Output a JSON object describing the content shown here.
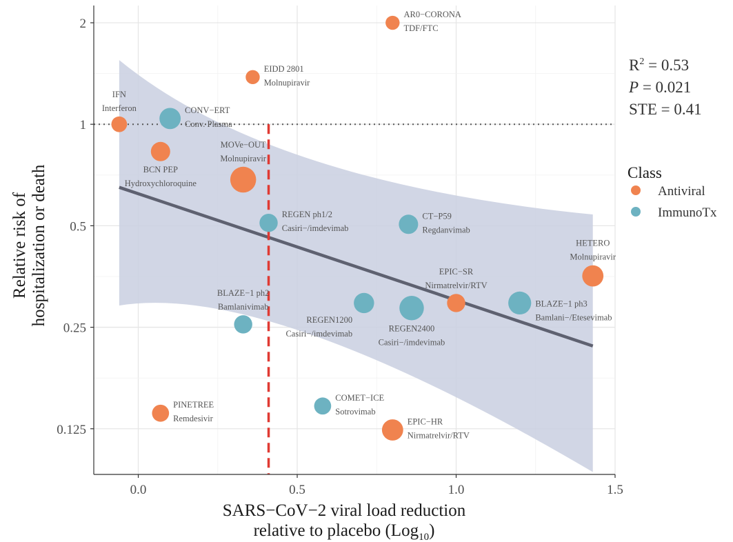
{
  "chart_data": {
    "type": "scatter",
    "xlabel_lines": [
      "SARS−CoV−2 viral load reduction",
      "relative to placebo (Log",
      "10",
      ")"
    ],
    "ylabel_lines": [
      "Relative risk of",
      "hospitalization or death"
    ],
    "x_ticks": [
      {
        "value": 0.0,
        "label": "0.0"
      },
      {
        "value": 0.5,
        "label": "0.5"
      },
      {
        "value": 1.0,
        "label": "1.0"
      },
      {
        "value": 1.5,
        "label": "1.5"
      }
    ],
    "y_ticks": [
      {
        "value": 0.125,
        "label": "0.125"
      },
      {
        "value": 0.25,
        "label": "0.25"
      },
      {
        "value": 0.5,
        "label": "0.5"
      },
      {
        "value": 1,
        "label": "1"
      },
      {
        "value": 2,
        "label": "2"
      }
    ],
    "xlim": [
      -0.14,
      1.5
    ],
    "ylim_log2": [
      -3.45,
      1.17
    ],
    "y_scale": "log2",
    "grid": true,
    "reference_line_y": 1,
    "threshold_x": 0.41,
    "regression": {
      "x_range": [
        -0.06,
        1.43
      ],
      "y_at_start": 0.65,
      "y_at_end": 0.22,
      "ci_lower": [
        [
          -0.06,
          0.29
        ],
        [
          0.41,
          0.29
        ],
        [
          1.43,
          0.093
        ]
      ],
      "ci_upper": [
        [
          -0.06,
          1.55
        ],
        [
          0.41,
          0.82
        ],
        [
          1.43,
          0.54
        ]
      ]
    },
    "stats": {
      "r2_prefix": "R",
      "r2_sup": "2",
      "r2_value": " = 0.53",
      "p_symbol": "P",
      "p_value": " = 0.021",
      "ste": "STE = 0.41"
    },
    "legend": {
      "title": "Class",
      "position": "right",
      "items": [
        {
          "label": "Antiviral",
          "color": "#f0834f"
        },
        {
          "label": "ImmunoTx",
          "color": "#6db2c1"
        }
      ]
    },
    "colors": {
      "Antiviral": "#f0834f",
      "ImmunoTx": "#6db2c1",
      "regression": "#5e6170",
      "ci_band": "#c9cfe0",
      "threshold": "#e03a33"
    },
    "points": [
      {
        "x": 0.8,
        "y": 2.0,
        "class": "Antiviral",
        "weight": 1,
        "trial": "AR0−CORONA",
        "drug": "TDF/FTC",
        "label_side": "right-up"
      },
      {
        "x": 0.36,
        "y": 1.38,
        "class": "Antiviral",
        "weight": 1,
        "trial": "EIDD 2801",
        "drug": "Molnupiravir",
        "label_side": "right-up"
      },
      {
        "x": -0.06,
        "y": 1.0,
        "class": "Antiviral",
        "weight": 1.5,
        "trial": "IFN",
        "drug": "Interferon",
        "label_side": "up"
      },
      {
        "x": 0.1,
        "y": 1.04,
        "class": "ImmunoTx",
        "weight": 4,
        "trial": "CONV−ERT",
        "drug": "Conv. Plasma",
        "label_side": "right-up"
      },
      {
        "x": 0.07,
        "y": 0.83,
        "class": "Antiviral",
        "weight": 3,
        "trial": "BCN PEP",
        "drug": "Hydroxychloroquine",
        "label_side": "down"
      },
      {
        "x": 0.33,
        "y": 0.685,
        "class": "Antiviral",
        "weight": 7,
        "trial": "MOVe−OUT",
        "drug": "Molnupiravir",
        "label_side": "up"
      },
      {
        "x": 0.41,
        "y": 0.51,
        "class": "ImmunoTx",
        "weight": 2.5,
        "trial": "REGEN ph1/2",
        "drug": "Casiri−/imdevimab",
        "label_side": "right-up"
      },
      {
        "x": 0.85,
        "y": 0.505,
        "class": "ImmunoTx",
        "weight": 3,
        "trial": "CT−P59",
        "drug": "Regdanvimab",
        "label_side": "right-up"
      },
      {
        "x": 1.43,
        "y": 0.355,
        "class": "Antiviral",
        "weight": 4,
        "trial": "HETERO",
        "drug": "Molnupiravir",
        "label_side": "up"
      },
      {
        "x": 1.0,
        "y": 0.295,
        "class": "Antiviral",
        "weight": 2.5,
        "trial": "EPIC−SR",
        "drug": "Nirmatrelvir/RTV",
        "label_side": "up"
      },
      {
        "x": 0.71,
        "y": 0.295,
        "class": "ImmunoTx",
        "weight": 3.5,
        "trial": "REGEN1200",
        "drug": "Casiri−/imdevimab",
        "label_side": "down-left"
      },
      {
        "x": 0.86,
        "y": 0.285,
        "class": "ImmunoTx",
        "weight": 6,
        "trial": "REGEN2400",
        "drug": "Casiri−/imdevimab",
        "label_side": "down"
      },
      {
        "x": 1.2,
        "y": 0.295,
        "class": "ImmunoTx",
        "weight": 5,
        "trial": "BLAZE−1 ph3",
        "drug": "Bamlani−/Etesevimab",
        "label_side": "right-down"
      },
      {
        "x": 0.33,
        "y": 0.255,
        "class": "ImmunoTx",
        "weight": 2.5,
        "trial": "BLAZE−1 ph2",
        "drug": "Bamlanivimab",
        "label_side": "up"
      },
      {
        "x": 0.58,
        "y": 0.146,
        "class": "ImmunoTx",
        "weight": 2,
        "trial": "COMET−ICE",
        "drug": "Sotrovimab",
        "label_side": "right-up"
      },
      {
        "x": 0.07,
        "y": 0.139,
        "class": "Antiviral",
        "weight": 2,
        "trial": "PINETREE",
        "drug": "Remdesivir",
        "label_side": "right-up"
      },
      {
        "x": 0.8,
        "y": 0.124,
        "class": "Antiviral",
        "weight": 4,
        "trial": "EPIC−HR",
        "drug": "Nirmatrelvir/RTV",
        "label_side": "right-up"
      }
    ]
  }
}
